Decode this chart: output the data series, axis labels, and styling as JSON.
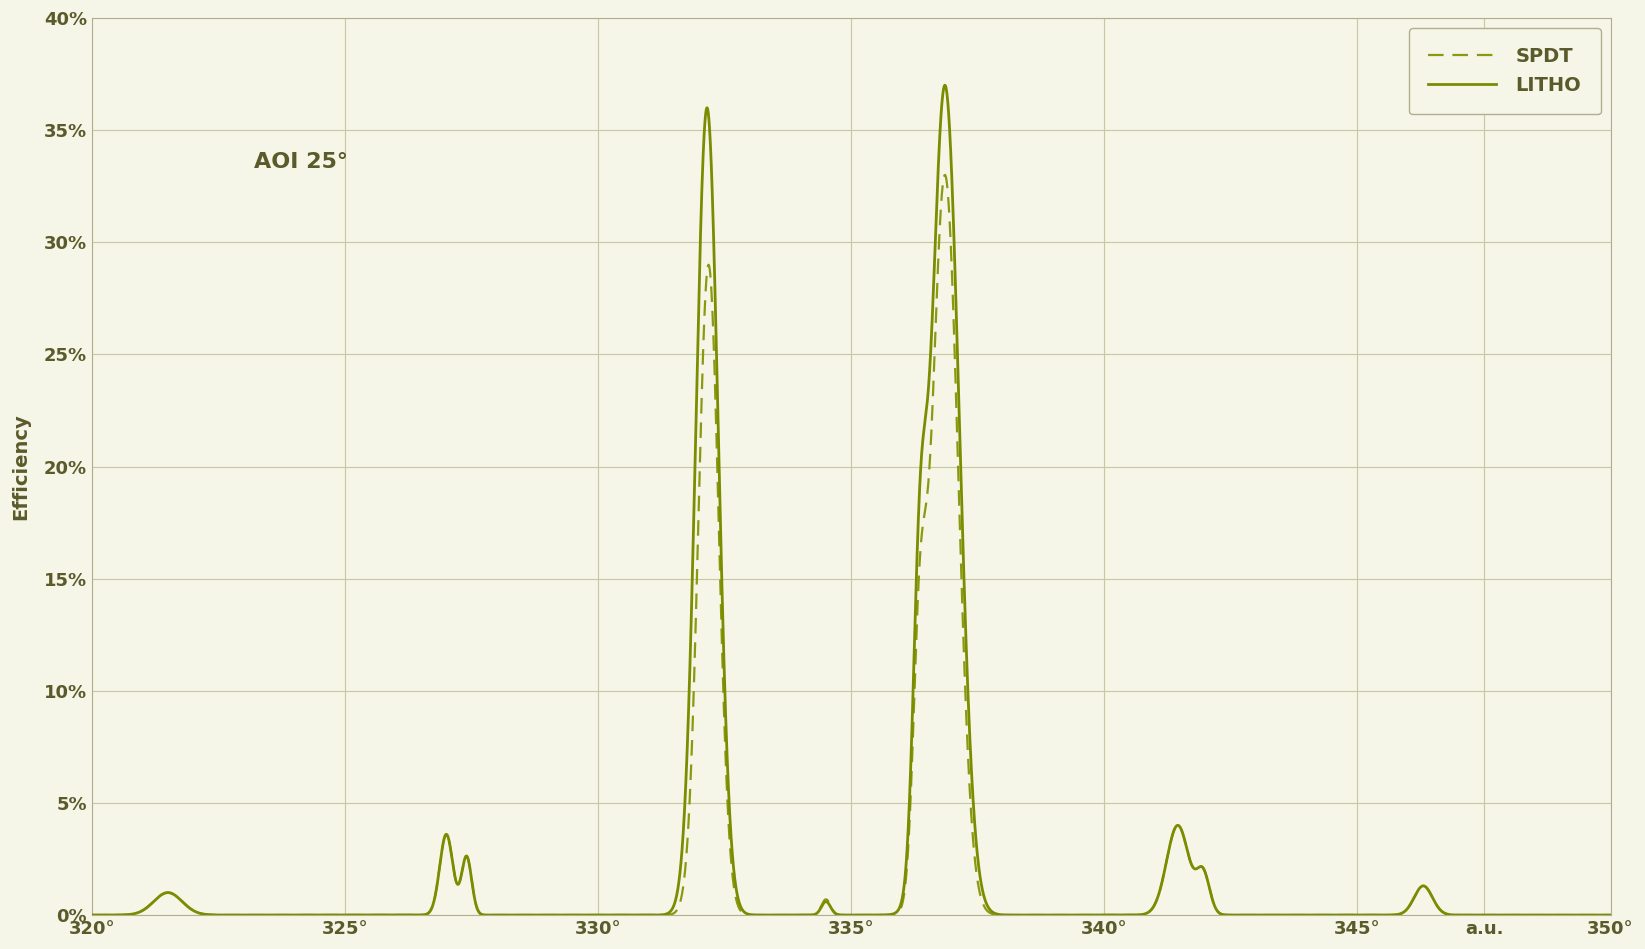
{
  "background_color": "#f5f5e8",
  "grid_color": "#c8c8a0",
  "line_color_litho": "#7a8c00",
  "line_color_spdt": "#8a9a10",
  "ylabel": "Efficiency",
  "annotation": "AOI 25°",
  "legend_spdt": "SPDT",
  "legend_litho": "LITHO",
  "xlim": [
    320,
    350
  ],
  "ylim": [
    0.0,
    0.4
  ],
  "xtick_positions": [
    320,
    325,
    330,
    335,
    340,
    345,
    347.5,
    350
  ],
  "xtick_labels": [
    "320°",
    "325°",
    "330°",
    "335°",
    "340°",
    "345°",
    "a.u.",
    "350°"
  ],
  "ytick_positions": [
    0.0,
    0.05,
    0.1,
    0.15,
    0.2,
    0.25,
    0.3,
    0.35,
    0.4
  ],
  "ytick_labels": [
    "0%",
    "5%",
    "10%",
    "15%",
    "20%",
    "25%",
    "30%",
    "35%",
    "40%"
  ]
}
